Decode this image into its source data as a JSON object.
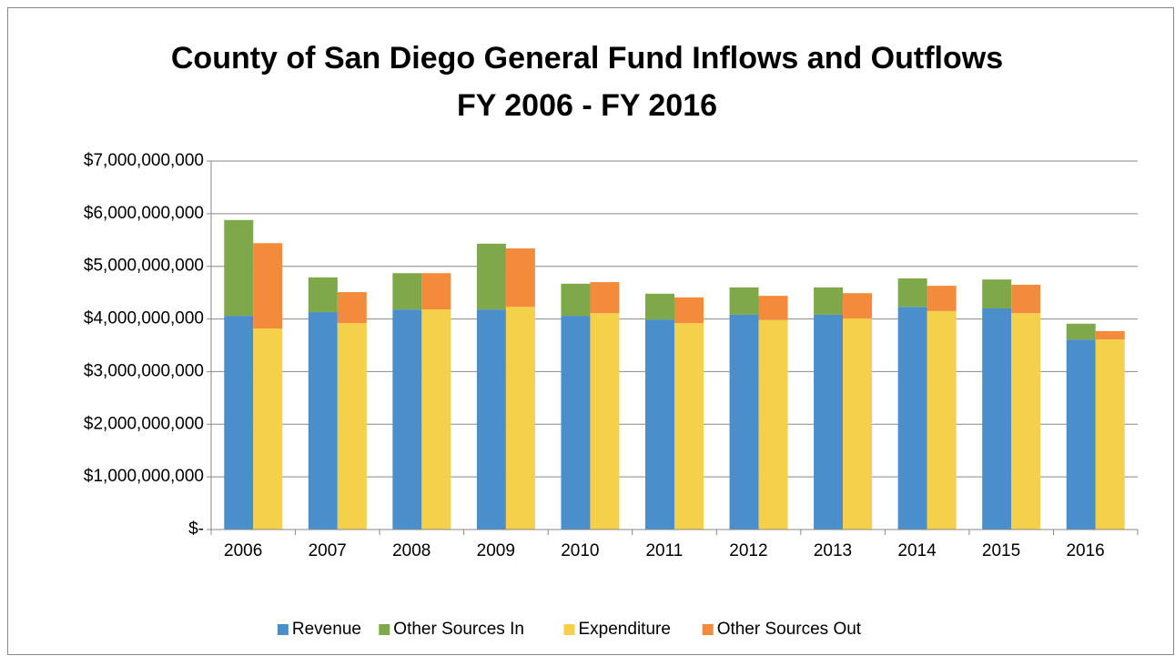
{
  "chart_data": {
    "type": "grouped_stacked_bar",
    "title": "County of San Diego General Fund Inflows and Outflows",
    "subtitle": "FY 2006 - FY 2016",
    "categories": [
      "2006",
      "2007",
      "2008",
      "2009",
      "2010",
      "2011",
      "2012",
      "2013",
      "2014",
      "2015",
      "2016"
    ],
    "series": [
      {
        "name": "Revenue",
        "stack": "inflows",
        "color": "#4a8fcb",
        "values": [
          4060000000,
          4130000000,
          4180000000,
          4180000000,
          4060000000,
          3990000000,
          4080000000,
          4080000000,
          4230000000,
          4200000000,
          3610000000
        ]
      },
      {
        "name": "Other Sources In",
        "stack": "inflows",
        "color": "#7fa84a",
        "values": [
          1820000000,
          660000000,
          690000000,
          1250000000,
          610000000,
          490000000,
          520000000,
          520000000,
          540000000,
          550000000,
          300000000
        ]
      },
      {
        "name": "Expenditure",
        "stack": "outflows",
        "color": "#f5d04a",
        "values": [
          3820000000,
          3920000000,
          4180000000,
          4230000000,
          4110000000,
          3920000000,
          3980000000,
          4010000000,
          4150000000,
          4110000000,
          3610000000
        ]
      },
      {
        "name": "Other Sources Out",
        "stack": "outflows",
        "color": "#f28c3c",
        "values": [
          1620000000,
          590000000,
          690000000,
          1110000000,
          590000000,
          490000000,
          460000000,
          480000000,
          480000000,
          540000000,
          160000000
        ]
      }
    ],
    "ylim": [
      0,
      7000000000
    ],
    "yticks": [
      {
        "value": 0,
        "label": "$-"
      },
      {
        "value": 1000000000,
        "label": "$1,000,000,000"
      },
      {
        "value": 2000000000,
        "label": "$2,000,000,000"
      },
      {
        "value": 3000000000,
        "label": "$3,000,000,000"
      },
      {
        "value": 4000000000,
        "label": "$4,000,000,000"
      },
      {
        "value": 5000000000,
        "label": "$5,000,000,000"
      },
      {
        "value": 6000000000,
        "label": "$6,000,000,000"
      },
      {
        "value": 7000000000,
        "label": "$7,000,000,000"
      }
    ],
    "grid": true,
    "legend": "bottom"
  }
}
